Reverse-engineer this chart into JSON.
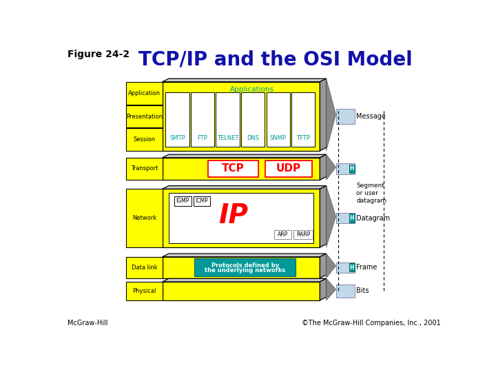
{
  "title": "TCP/IP and the OSI Model",
  "figure_label": "Figure 24-2",
  "title_color": "#1111AA",
  "bg_color": "#FFFFFF",
  "yellow": "#FFFF00",
  "teal": "#009999",
  "light_blue": "#C0D8E8",
  "teal_h": "#009999",
  "white": "#FFFFFF",
  "black": "#000000",
  "red": "#FF0000",
  "cyan_text": "#009999",
  "gray_cone": "#888888",
  "gray_top": "#BBBBBB",
  "footer_left": "McGraw-Hill",
  "footer_right": "©The McGraw-Hill Companies, Inc., 2001",
  "app_protocols": [
    "SMTP",
    "FTP",
    "TELNET",
    "DNS",
    "SNMP",
    "TFTP"
  ]
}
